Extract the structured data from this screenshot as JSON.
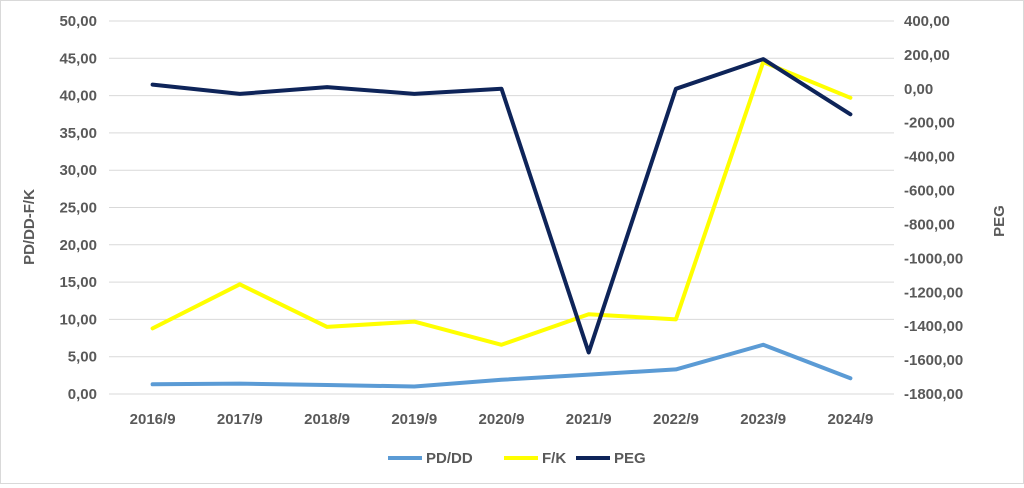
{
  "chart_data": {
    "type": "line",
    "categories": [
      "2016/9",
      "2017/9",
      "2018/9",
      "2019/9",
      "2020/9",
      "2021/9",
      "2022/9",
      "2023/9",
      "2024/9"
    ],
    "series": [
      {
        "name": "PD/DD",
        "axis": "left",
        "color": "#5b9bd5",
        "values": [
          1.3,
          1.4,
          1.2,
          1.0,
          1.9,
          2.6,
          3.3,
          6.6,
          2.1
        ]
      },
      {
        "name": "F/K",
        "axis": "left",
        "color": "#ffff00",
        "values": [
          8.8,
          14.7,
          9.0,
          9.7,
          6.6,
          10.7,
          10.0,
          44.5,
          39.7
        ]
      },
      {
        "name": "PEG",
        "axis": "right",
        "color": "#0e2459",
        "values": [
          25,
          -30,
          10,
          -30,
          0,
          -1555,
          0,
          175,
          -150
        ]
      }
    ],
    "y_left": {
      "label": "PD/DD-F/K",
      "ylim": [
        0,
        50
      ],
      "ticks": [
        "0,00",
        "5,00",
        "10,00",
        "15,00",
        "20,00",
        "25,00",
        "30,00",
        "35,00",
        "40,00",
        "45,00",
        "50,00"
      ]
    },
    "y_right": {
      "label": "PEG",
      "ylim": [
        -1800,
        400
      ],
      "ticks": [
        "-1800,00",
        "-1600,00",
        "-1400,00",
        "-1200,00",
        "-1000,00",
        "-800,00",
        "-600,00",
        "-400,00",
        "-200,00",
        "0,00",
        "200,00",
        "400,00"
      ]
    },
    "grid": true,
    "legend": "bottom"
  }
}
